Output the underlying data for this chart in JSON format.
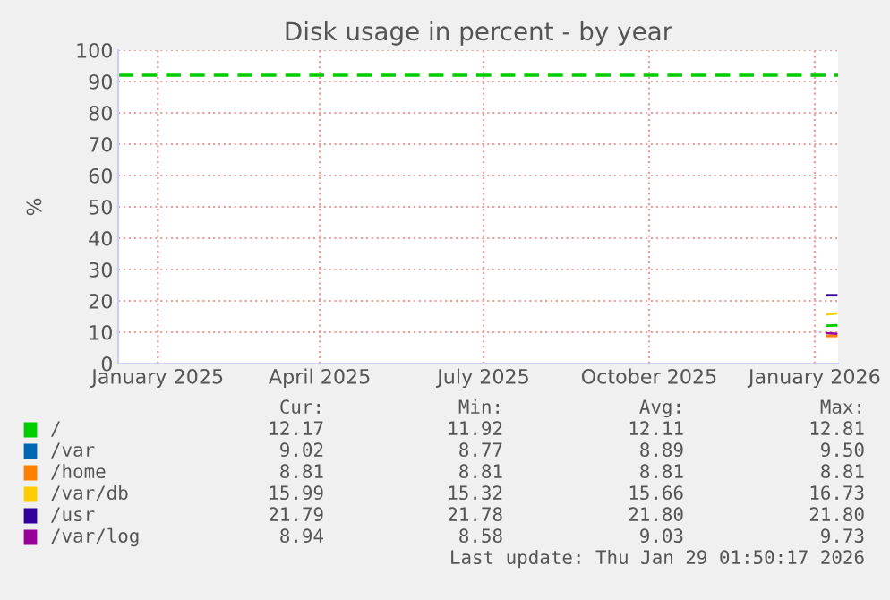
{
  "chart_data": {
    "type": "line",
    "title": "Disk usage in percent - by year",
    "ylabel": "%",
    "xlim": [
      "2024-12-25",
      "2026-01-29"
    ],
    "xticks": [
      {
        "value": "2025-01-16",
        "label": "January 2025"
      },
      {
        "value": "2025-04-16",
        "label": "April 2025"
      },
      {
        "value": "2025-07-16",
        "label": "July 2025"
      },
      {
        "value": "2025-10-16",
        "label": "October 2025"
      },
      {
        "value": "2026-01-16",
        "label": "January 2026"
      }
    ],
    "ylim": [
      0,
      100
    ],
    "yticks": [
      0,
      10,
      20,
      30,
      40,
      50,
      60,
      70,
      80,
      90,
      100
    ],
    "grid": true,
    "legend": "bottom",
    "series": [
      {
        "name": "/",
        "color": "#00cc00",
        "x": [
          "2026-01-23",
          "2026-01-28"
        ],
        "values": [
          12.1,
          12.2
        ]
      },
      {
        "name": "/var",
        "color": "#0066b3"
      },
      {
        "name": "/home",
        "color": "#ff8000",
        "x": [
          "2026-01-23",
          "2026-01-28"
        ],
        "values": [
          8.8,
          8.8
        ]
      },
      {
        "name": "/var/db",
        "color": "#ffcc00",
        "x": [
          "2026-01-23",
          "2026-01-28"
        ],
        "values": [
          15.7,
          16.0
        ]
      },
      {
        "name": "/usr",
        "color": "#330099",
        "x": [
          "2026-01-23",
          "2026-01-28"
        ],
        "values": [
          21.8,
          21.8
        ]
      },
      {
        "name": "/var/log",
        "color": "#990099",
        "x": [
          "2026-01-23",
          "2026-01-28"
        ],
        "values": [
          9.7,
          9.5
        ]
      }
    ],
    "ref_lines": [
      {
        "axis": "y",
        "value": 92,
        "color": "#00cc00",
        "line_style": "dashed"
      }
    ],
    "annotations": [
      "Cur:",
      "Min:",
      "Avg:",
      "Max:",
      "12.17",
      "11.92",
      "12.11",
      "12.81",
      "9.02",
      "8.77",
      "8.89",
      "9.50",
      "8.81",
      "8.81",
      "8.81",
      "8.81",
      "15.99",
      "15.32",
      "15.66",
      "16.73",
      "21.79",
      "21.78",
      "21.80",
      "21.80",
      "8.94",
      "8.58",
      "9.03",
      "9.73",
      "Last update: Thu Jan 29 01:50:17 2026"
    ]
  }
}
